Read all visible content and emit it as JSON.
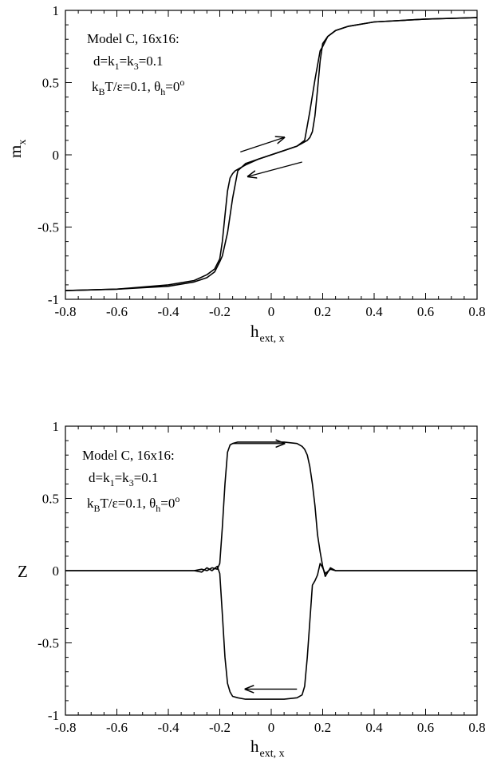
{
  "chart_data": [
    {
      "type": "line",
      "xlabel": "h",
      "xlabel_sub": "ext, x",
      "ylabel": "m",
      "ylabel_sub": "x",
      "xlim": [
        -0.8,
        0.8
      ],
      "ylim": [
        -1,
        1
      ],
      "x_ticks": [
        "-0.8",
        "-0.6",
        "-0.4",
        "-0.2",
        "0",
        "0.2",
        "0.4",
        "0.6",
        "0.8"
      ],
      "y_ticks": [
        "1",
        "0.5",
        "0",
        "-0.5",
        "-1"
      ],
      "annotation": {
        "line1": "Model C, 16x16:",
        "line2_parts": [
          "d=k",
          "1",
          "=k",
          "3",
          "=0.1"
        ],
        "line3_parts": [
          "k",
          "B",
          "T/ε=0.1, θ",
          "h",
          "=0",
          "o"
        ]
      },
      "series": [
        {
          "values_sweep": "increasing",
          "x": [
            -0.8,
            -0.6,
            -0.4,
            -0.3,
            -0.25,
            -0.22,
            -0.2,
            -0.19,
            -0.18,
            -0.17,
            -0.16,
            -0.15,
            -0.14,
            -0.1,
            -0.05,
            0.0,
            0.05,
            0.1,
            0.13,
            0.15,
            0.17,
            0.19,
            0.2,
            0.22,
            0.25,
            0.3,
            0.4,
            0.6,
            0.8
          ],
          "y": [
            -0.94,
            -0.93,
            -0.9,
            -0.87,
            -0.83,
            -0.79,
            -0.72,
            -0.6,
            -0.42,
            -0.25,
            -0.16,
            -0.13,
            -0.11,
            -0.07,
            -0.03,
            0.0,
            0.03,
            0.06,
            0.1,
            0.3,
            0.52,
            0.72,
            0.75,
            0.82,
            0.86,
            0.89,
            0.92,
            0.94,
            0.95
          ]
        },
        {
          "values_sweep": "decreasing",
          "x": [
            0.8,
            0.6,
            0.4,
            0.3,
            0.25,
            0.22,
            0.2,
            0.19,
            0.18,
            0.17,
            0.16,
            0.15,
            0.14,
            0.1,
            0.05,
            0.0,
            -0.05,
            -0.1,
            -0.13,
            -0.15,
            -0.17,
            -0.19,
            -0.2,
            -0.22,
            -0.25,
            -0.3,
            -0.4,
            -0.6,
            -0.8
          ],
          "y": [
            0.95,
            0.94,
            0.92,
            0.89,
            0.86,
            0.82,
            0.77,
            0.65,
            0.45,
            0.27,
            0.16,
            0.12,
            0.1,
            0.06,
            0.03,
            0.0,
            -0.03,
            -0.06,
            -0.11,
            -0.3,
            -0.54,
            -0.7,
            -0.74,
            -0.81,
            -0.85,
            -0.88,
            -0.91,
            -0.93,
            -0.94
          ]
        }
      ],
      "arrows": [
        {
          "from": [
            -0.12,
            0.02
          ],
          "to": [
            0.05,
            0.12
          ]
        },
        {
          "from": [
            0.12,
            -0.05
          ],
          "to": [
            -0.09,
            -0.15
          ]
        }
      ]
    },
    {
      "type": "line",
      "xlabel": "h",
      "xlabel_sub": "ext, x",
      "ylabel": "Z",
      "ylabel_sub": "",
      "xlim": [
        -0.8,
        0.8
      ],
      "ylim": [
        -1,
        1
      ],
      "x_ticks": [
        "-0.8",
        "-0.6",
        "-0.4",
        "-0.2",
        "0",
        "0.2",
        "0.4",
        "0.6",
        "0.8"
      ],
      "y_ticks": [
        "1",
        "0.5",
        "0",
        "-0.5",
        "-1"
      ],
      "annotation": {
        "line1": "Model C, 16x16:",
        "line2_parts": [
          "d=k",
          "1",
          "=k",
          "3",
          "=0.1"
        ],
        "line3_parts": [
          "k",
          "B",
          "T/ε=0.1,  θ",
          "h",
          "=0",
          "o"
        ]
      },
      "series": [
        {
          "values_sweep": "upper",
          "x": [
            -0.8,
            -0.4,
            -0.3,
            -0.27,
            -0.25,
            -0.23,
            -0.21,
            -0.2,
            -0.19,
            -0.18,
            -0.17,
            -0.16,
            -0.15,
            -0.13,
            -0.1,
            -0.05,
            0.0,
            0.05,
            0.1,
            0.12,
            0.13,
            0.14,
            0.15,
            0.16,
            0.17,
            0.18,
            0.19,
            0.2,
            0.21,
            0.23,
            0.25,
            0.3,
            0.4,
            0.8
          ],
          "y": [
            0.0,
            0.0,
            0.0,
            0.01,
            0.0,
            0.02,
            0.01,
            0.05,
            0.3,
            0.6,
            0.82,
            0.87,
            0.88,
            0.89,
            0.89,
            0.89,
            0.89,
            0.89,
            0.88,
            0.86,
            0.84,
            0.8,
            0.72,
            0.6,
            0.45,
            0.25,
            0.13,
            0.03,
            -0.04,
            0.02,
            0.0,
            0.0,
            0.0,
            0.0
          ]
        },
        {
          "values_sweep": "lower",
          "x": [
            -0.8,
            -0.4,
            -0.3,
            -0.27,
            -0.25,
            -0.23,
            -0.21,
            -0.2,
            -0.19,
            -0.18,
            -0.17,
            -0.16,
            -0.15,
            -0.13,
            -0.1,
            -0.05,
            0.0,
            0.05,
            0.1,
            0.12,
            0.13,
            0.14,
            0.15,
            0.16,
            0.17,
            0.18,
            0.19,
            0.2,
            0.21,
            0.23,
            0.25,
            0.3,
            0.4,
            0.8
          ],
          "y": [
            0.0,
            0.0,
            0.0,
            -0.01,
            0.02,
            0.0,
            0.03,
            -0.02,
            -0.3,
            -0.6,
            -0.78,
            -0.84,
            -0.87,
            -0.88,
            -0.89,
            -0.89,
            -0.89,
            -0.89,
            -0.88,
            -0.86,
            -0.8,
            -0.6,
            -0.35,
            -0.1,
            -0.07,
            -0.03,
            0.05,
            0.02,
            -0.02,
            0.01,
            0.0,
            0.0,
            0.0,
            0.0
          ]
        }
      ],
      "arrows": [
        {
          "from": [
            -0.15,
            0.88
          ],
          "to": [
            0.05,
            0.88
          ]
        },
        {
          "from": [
            0.1,
            -0.82
          ],
          "to": [
            -0.1,
            -0.82
          ]
        }
      ]
    }
  ]
}
